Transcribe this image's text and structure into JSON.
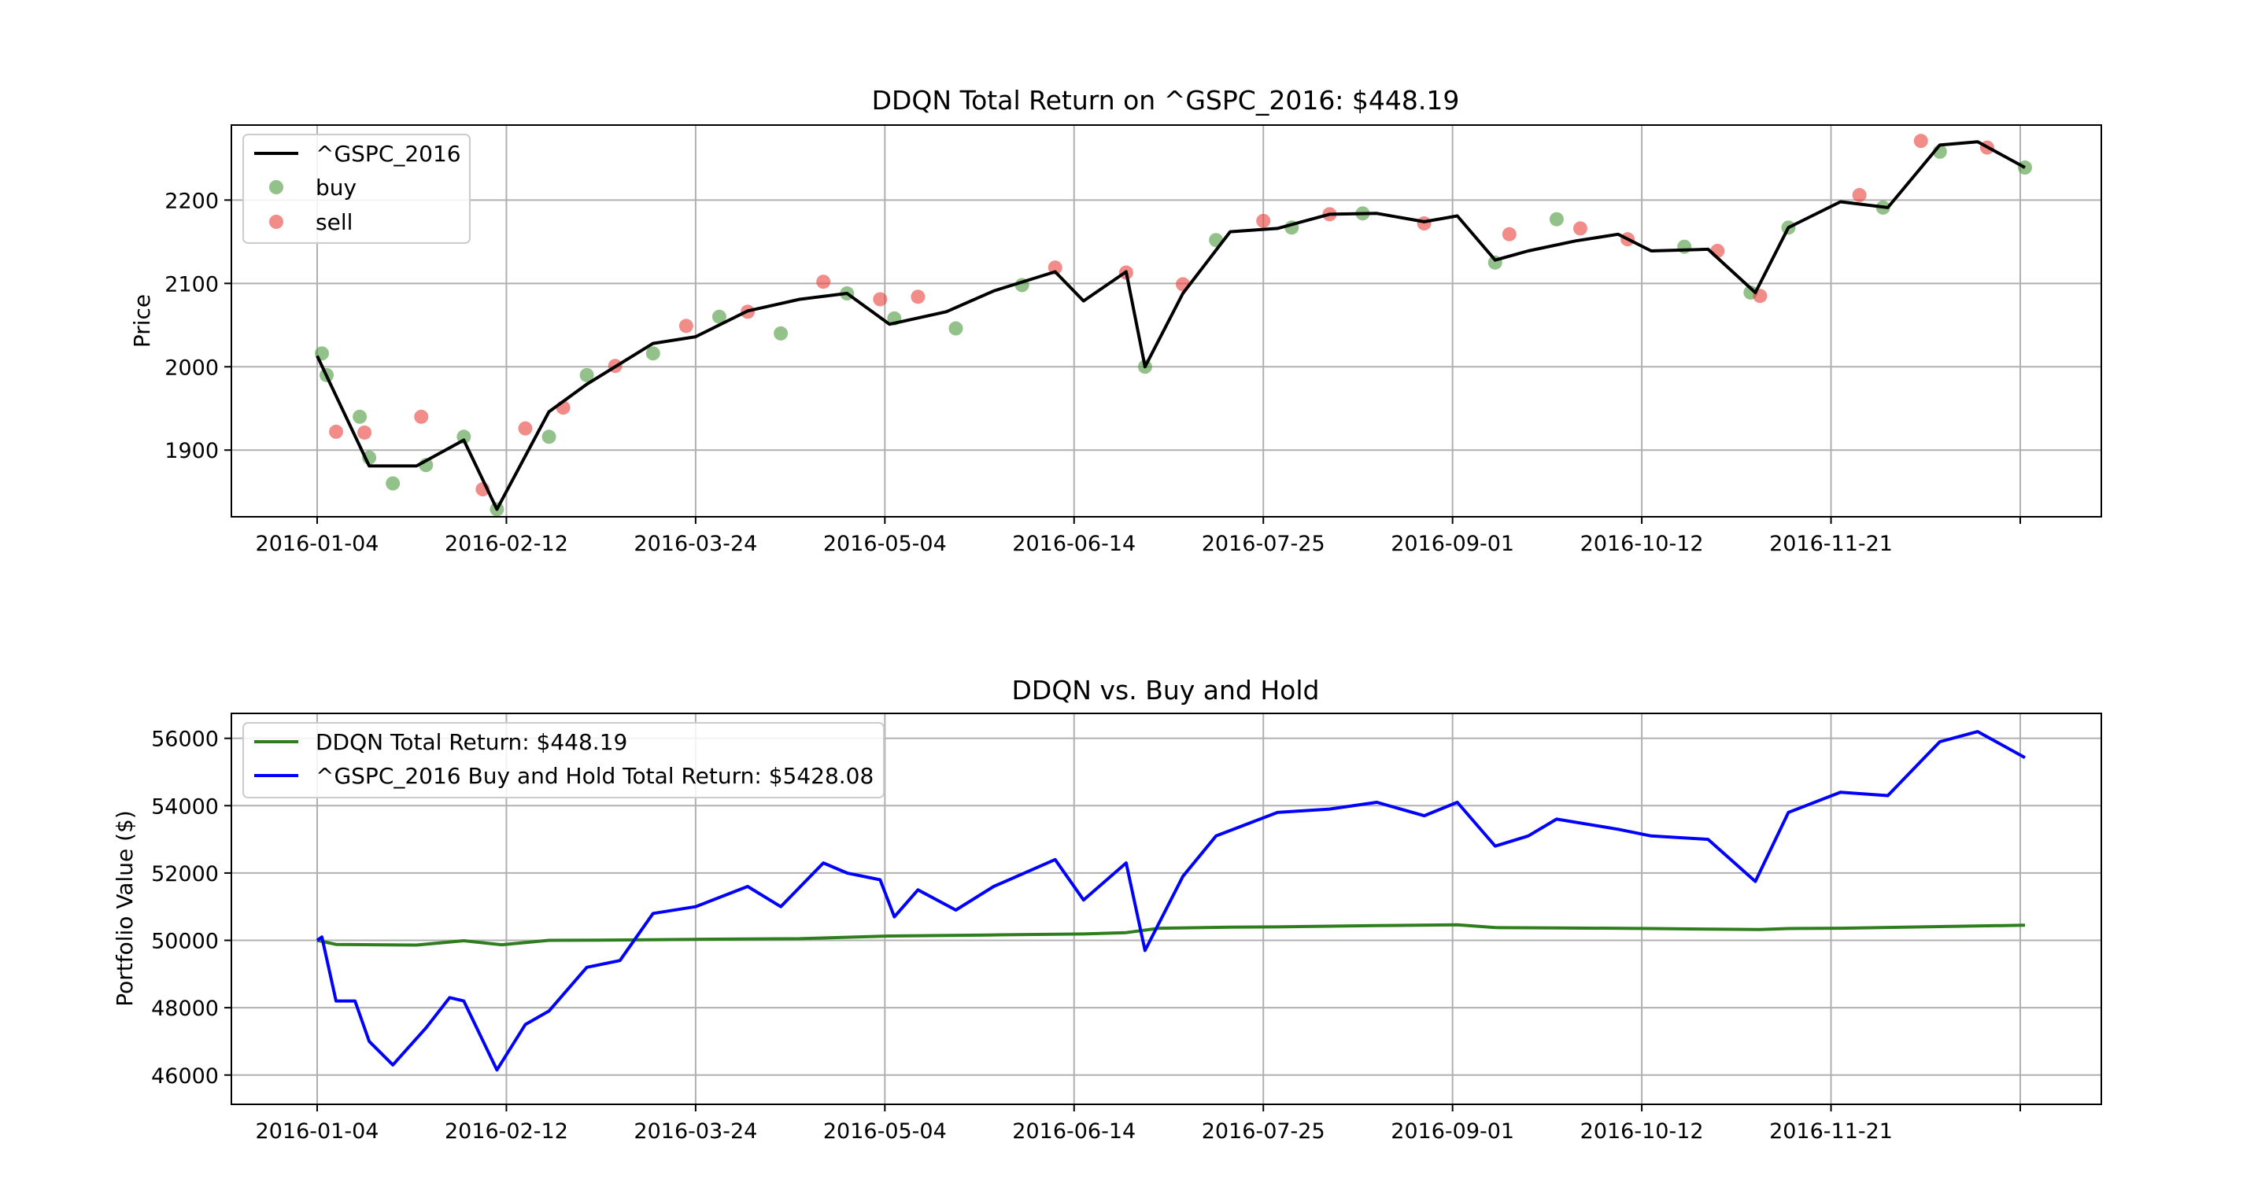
{
  "chart_data": [
    {
      "type": "line",
      "title": "DDQN Total Return on ^GSPC_2016: $448.19",
      "xlabel": "",
      "ylabel": "Price",
      "ylim": [
        1820,
        2290
      ],
      "yticks": [
        "1900",
        "2000",
        "2100",
        "2200"
      ],
      "xticks": [
        "2016-01-04",
        "2016-02-12",
        "2016-03-24",
        "2016-05-04",
        "2016-06-14",
        "2016-07-25",
        "2016-09-01",
        "2016-10-12",
        "2016-11-21",
        ""
      ],
      "grid": true,
      "legend_position": "upper-left",
      "legend": [
        "^GSPC_2016",
        "buy",
        "sell"
      ],
      "line_color": "#000000",
      "buy_color": "#4a9a3a",
      "sell_color": "#e8403a",
      "series": [
        {
          "name": "^GSPC_2016",
          "x": [
            "2016-01-04",
            "2016-01-15",
            "2016-01-25",
            "2016-02-04",
            "2016-02-11",
            "2016-02-22",
            "2016-03-01",
            "2016-03-15",
            "2016-03-24",
            "2016-04-04",
            "2016-04-15",
            "2016-04-25",
            "2016-05-04",
            "2016-05-16",
            "2016-05-26",
            "2016-06-08",
            "2016-06-14",
            "2016-06-23",
            "2016-06-27",
            "2016-07-05",
            "2016-07-15",
            "2016-07-25",
            "2016-08-05",
            "2016-08-15",
            "2016-08-25",
            "2016-09-01",
            "2016-09-09",
            "2016-09-16",
            "2016-09-26",
            "2016-10-05",
            "2016-10-12",
            "2016-10-24",
            "2016-11-03",
            "2016-11-10",
            "2016-11-21",
            "2016-12-01",
            "2016-12-12",
            "2016-12-20",
            "2016-12-30"
          ],
          "values": [
            2013,
            1881,
            1881,
            1912,
            1829,
            1946,
            1979,
            2028,
            2036,
            2067,
            2081,
            2088,
            2051,
            2066,
            2091,
            2114,
            2079,
            2114,
            2000,
            2088,
            2162,
            2166,
            2183,
            2184,
            2174,
            2181,
            2128,
            2139,
            2151,
            2159,
            2139,
            2141,
            2089,
            2167,
            2198,
            2191,
            2266,
            2270,
            2239
          ]
        }
      ],
      "buy_points": [
        {
          "x": "2016-01-05",
          "y": 2016
        },
        {
          "x": "2016-01-06",
          "y": 1990
        },
        {
          "x": "2016-01-13",
          "y": 1940
        },
        {
          "x": "2016-01-15",
          "y": 1891
        },
        {
          "x": "2016-01-20",
          "y": 1860
        },
        {
          "x": "2016-01-27",
          "y": 1882
        },
        {
          "x": "2016-02-04",
          "y": 1916
        },
        {
          "x": "2016-02-11",
          "y": 1829
        },
        {
          "x": "2016-02-22",
          "y": 1916
        },
        {
          "x": "2016-03-01",
          "y": 1990
        },
        {
          "x": "2016-03-15",
          "y": 2016
        },
        {
          "x": "2016-03-29",
          "y": 2060
        },
        {
          "x": "2016-04-11",
          "y": 2040
        },
        {
          "x": "2016-04-25",
          "y": 2088
        },
        {
          "x": "2016-05-05",
          "y": 2058
        },
        {
          "x": "2016-05-18",
          "y": 2046
        },
        {
          "x": "2016-06-01",
          "y": 2098
        },
        {
          "x": "2016-06-27",
          "y": 2000
        },
        {
          "x": "2016-07-12",
          "y": 2152
        },
        {
          "x": "2016-07-28",
          "y": 2167
        },
        {
          "x": "2016-08-12",
          "y": 2184
        },
        {
          "x": "2016-09-09",
          "y": 2125
        },
        {
          "x": "2016-09-22",
          "y": 2177
        },
        {
          "x": "2016-10-19",
          "y": 2144
        },
        {
          "x": "2016-11-02",
          "y": 2089
        },
        {
          "x": "2016-11-10",
          "y": 2167
        },
        {
          "x": "2016-11-30",
          "y": 2191
        },
        {
          "x": "2016-12-12",
          "y": 2258
        },
        {
          "x": "2016-12-30",
          "y": 2239
        }
      ],
      "sell_points": [
        {
          "x": "2016-01-08",
          "y": 1922
        },
        {
          "x": "2016-01-14",
          "y": 1921
        },
        {
          "x": "2016-01-26",
          "y": 1940
        },
        {
          "x": "2016-02-08",
          "y": 1853
        },
        {
          "x": "2016-02-17",
          "y": 1926
        },
        {
          "x": "2016-02-25",
          "y": 1951
        },
        {
          "x": "2016-03-07",
          "y": 2001
        },
        {
          "x": "2016-03-22",
          "y": 2049
        },
        {
          "x": "2016-04-04",
          "y": 2066
        },
        {
          "x": "2016-04-20",
          "y": 2102
        },
        {
          "x": "2016-05-02",
          "y": 2081
        },
        {
          "x": "2016-05-10",
          "y": 2084
        },
        {
          "x": "2016-06-08",
          "y": 2119
        },
        {
          "x": "2016-06-23",
          "y": 2113
        },
        {
          "x": "2016-07-05",
          "y": 2099
        },
        {
          "x": "2016-07-22",
          "y": 2175
        },
        {
          "x": "2016-08-05",
          "y": 2183
        },
        {
          "x": "2016-08-25",
          "y": 2172
        },
        {
          "x": "2016-09-12",
          "y": 2159
        },
        {
          "x": "2016-09-27",
          "y": 2166
        },
        {
          "x": "2016-10-07",
          "y": 2153
        },
        {
          "x": "2016-10-26",
          "y": 2139
        },
        {
          "x": "2016-11-04",
          "y": 2085
        },
        {
          "x": "2016-11-25",
          "y": 2206
        },
        {
          "x": "2016-12-08",
          "y": 2271
        },
        {
          "x": "2016-12-22",
          "y": 2263
        }
      ]
    },
    {
      "type": "line",
      "title": "DDQN vs. Buy and Hold",
      "xlabel": "",
      "ylabel": "Portfolio Value ($)",
      "ylim": [
        45130,
        56740
      ],
      "yticks": [
        "46000",
        "48000",
        "50000",
        "52000",
        "54000",
        "56000"
      ],
      "xticks": [
        "2016-01-04",
        "2016-02-12",
        "2016-03-24",
        "2016-05-04",
        "2016-06-14",
        "2016-07-25",
        "2016-09-01",
        "2016-10-12",
        "2016-11-21",
        ""
      ],
      "grid": true,
      "legend_position": "upper-left",
      "legend": [
        "DDQN Total Return: $448.19",
        "^GSPC_2016 Buy and Hold Total Return: $5428.08"
      ],
      "series": [
        {
          "name": "DDQN Total Return: $448.19",
          "color": "#2e7d1e",
          "x": [
            "2016-01-04",
            "2016-01-08",
            "2016-01-25",
            "2016-02-04",
            "2016-02-12",
            "2016-02-22",
            "2016-03-07",
            "2016-03-24",
            "2016-04-15",
            "2016-05-04",
            "2016-05-25",
            "2016-06-14",
            "2016-06-23",
            "2016-06-30",
            "2016-07-15",
            "2016-07-25",
            "2016-08-15",
            "2016-09-01",
            "2016-09-09",
            "2016-09-22",
            "2016-10-12",
            "2016-11-04",
            "2016-11-10",
            "2016-11-21",
            "2016-12-12",
            "2016-12-30"
          ],
          "values": [
            50000,
            49880,
            49860,
            49990,
            49870,
            50000,
            50010,
            50030,
            50050,
            50130,
            50160,
            50190,
            50230,
            50360,
            50390,
            50400,
            50440,
            50460,
            50380,
            50370,
            50350,
            50320,
            50350,
            50360,
            50410,
            50448
          ]
        },
        {
          "name": "^GSPC_2016 Buy and Hold Total Return: $5428.08",
          "color": "#0000ff",
          "x": [
            "2016-01-04",
            "2016-01-05",
            "2016-01-08",
            "2016-01-12",
            "2016-01-15",
            "2016-01-20",
            "2016-01-27",
            "2016-02-01",
            "2016-02-04",
            "2016-02-11",
            "2016-02-17",
            "2016-02-22",
            "2016-03-01",
            "2016-03-08",
            "2016-03-15",
            "2016-03-24",
            "2016-04-04",
            "2016-04-11",
            "2016-04-20",
            "2016-04-25",
            "2016-05-02",
            "2016-05-05",
            "2016-05-10",
            "2016-05-18",
            "2016-05-26",
            "2016-06-08",
            "2016-06-14",
            "2016-06-23",
            "2016-06-27",
            "2016-07-05",
            "2016-07-12",
            "2016-07-25",
            "2016-08-05",
            "2016-08-15",
            "2016-08-25",
            "2016-09-01",
            "2016-09-09",
            "2016-09-16",
            "2016-09-22",
            "2016-10-05",
            "2016-10-12",
            "2016-10-24",
            "2016-11-03",
            "2016-11-10",
            "2016-11-21",
            "2016-12-01",
            "2016-12-12",
            "2016-12-20",
            "2016-12-30"
          ],
          "values": [
            50000,
            50100,
            48200,
            48200,
            47000,
            46300,
            47400,
            48300,
            48200,
            46150,
            47500,
            47900,
            49200,
            49400,
            50800,
            51000,
            51600,
            51000,
            52300,
            52000,
            51800,
            50700,
            51500,
            50900,
            51600,
            52400,
            51200,
            52300,
            49700,
            51900,
            53100,
            53800,
            53900,
            54100,
            53700,
            54100,
            52800,
            53100,
            53600,
            53300,
            53100,
            53000,
            51750,
            53800,
            54400,
            54300,
            55900,
            56200,
            55428
          ]
        }
      ]
    }
  ]
}
